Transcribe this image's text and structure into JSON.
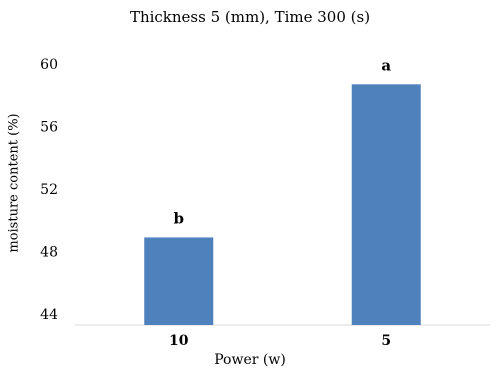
{
  "chart_data": {
    "type": "bar",
    "title": "Thickness 5 (mm), Time 300 (s)",
    "xlabel": "Power (w)",
    "ylabel": "moisture content  (%)",
    "categories": [
      "10",
      "5"
    ],
    "values": [
      48.9,
      58.7
    ],
    "data_labels": [
      "b",
      "a"
    ],
    "ylim": [
      44,
      60
    ],
    "yticks": [
      "44",
      "48",
      "52",
      "56",
      "60"
    ],
    "bar_color": "#4f81bd",
    "grid": false,
    "legend": "none"
  }
}
